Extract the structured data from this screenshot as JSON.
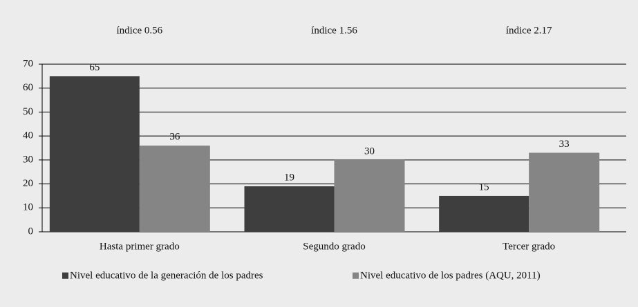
{
  "chart_data": {
    "type": "bar",
    "annotations": [
      "índice 0.56",
      "índice 1.56",
      "índice 2.17"
    ],
    "categories": [
      "Hasta primer grado",
      "Segundo grado",
      "Tercer grado"
    ],
    "series": [
      {
        "name": "Nivel educativo de la generación de los padres",
        "color": "#3e3e3e",
        "values": [
          65,
          19,
          15
        ]
      },
      {
        "name": "Nivel educativo de los padres (AQU, 2011)",
        "color": "#858585",
        "values": [
          36,
          30,
          33
        ]
      }
    ],
    "ylim": [
      0,
      70
    ],
    "yticks": [
      0,
      10,
      20,
      30,
      40,
      50,
      60,
      70
    ],
    "grid": true,
    "legend": "bottom"
  }
}
